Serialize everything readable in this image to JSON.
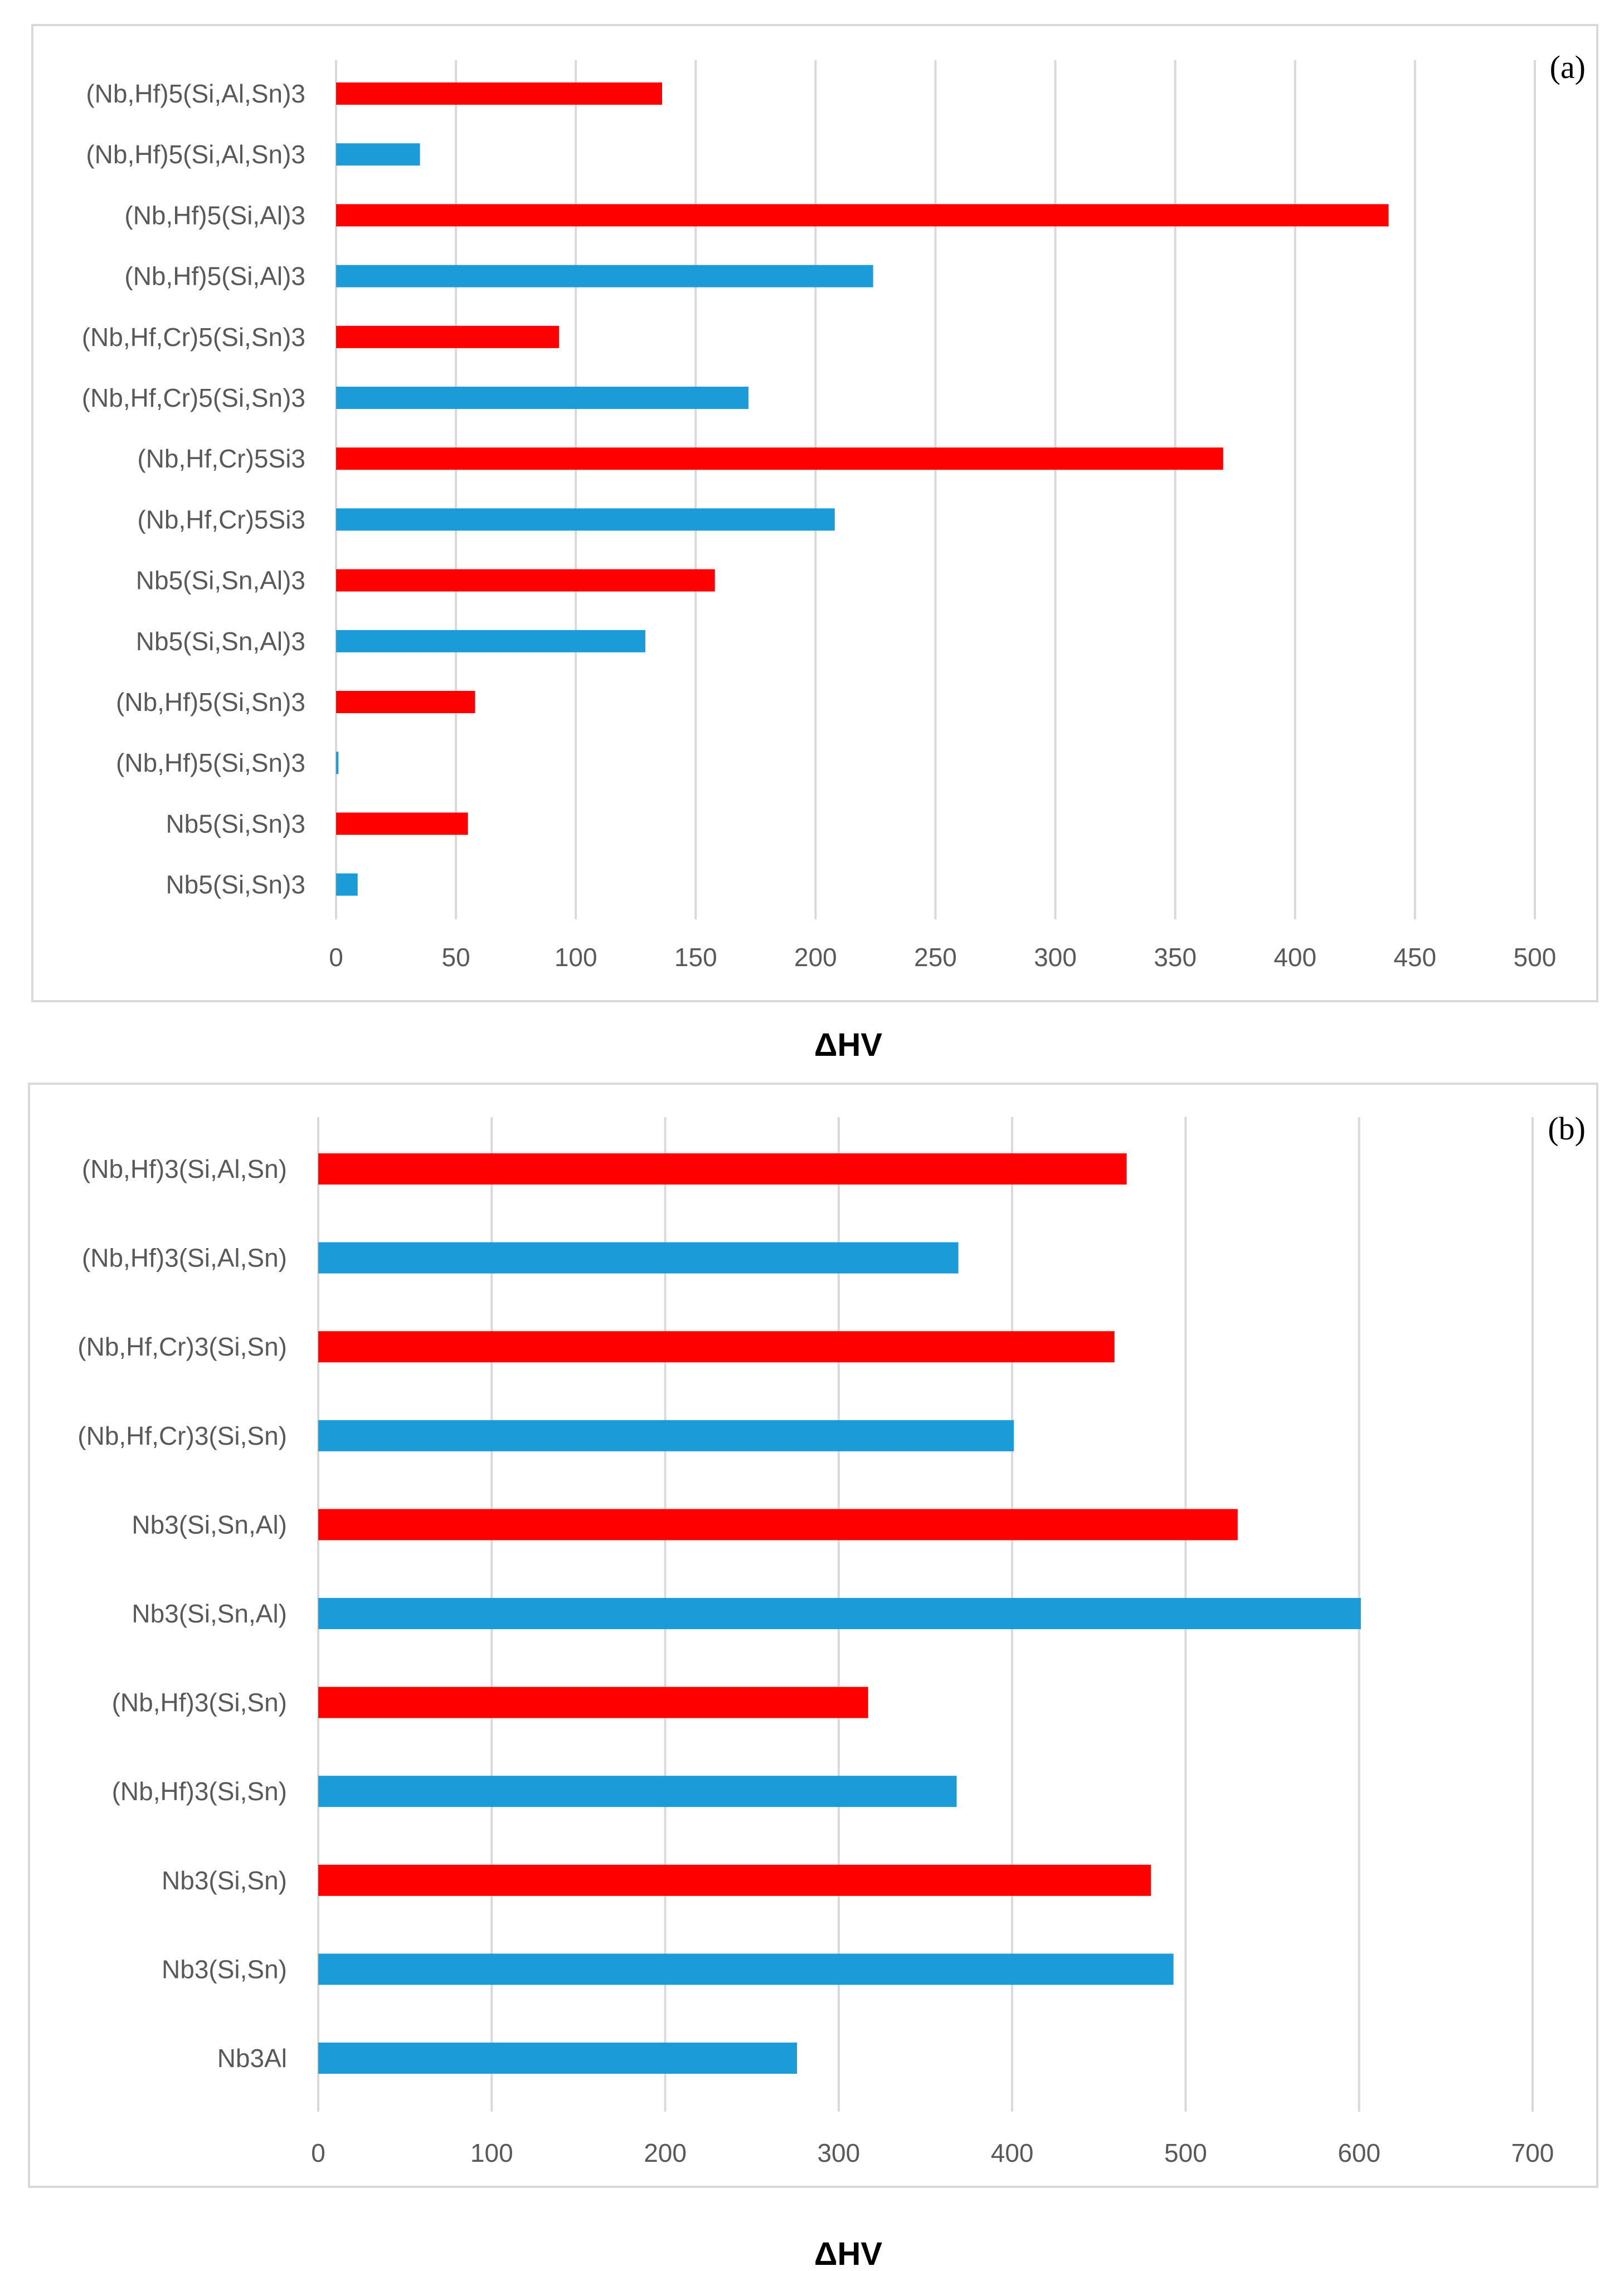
{
  "chart_data": [
    {
      "type": "bar",
      "orientation": "horizontal",
      "panel_label": "(a)",
      "xlabel": "ΔHV",
      "xlim": [
        0,
        500
      ],
      "xticks": [
        0,
        50,
        100,
        150,
        200,
        250,
        300,
        350,
        400,
        450,
        500
      ],
      "grid": true,
      "colors": {
        "red": "#ff0000",
        "blue": "#1b9cd9"
      },
      "bars": [
        {
          "category": "(Nb,Hf)5(Si,Al,Sn)3",
          "value": 136,
          "color": "red"
        },
        {
          "category": "(Nb,Hf)5(Si,Al,Sn)3",
          "value": 35,
          "color": "blue"
        },
        {
          "category": "(Nb,Hf)5(Si,Al)3",
          "value": 439,
          "color": "red"
        },
        {
          "category": "(Nb,Hf)5(Si,Al)3",
          "value": 224,
          "color": "blue"
        },
        {
          "category": "(Nb,Hf,Cr)5(Si,Sn)3",
          "value": 93,
          "color": "red"
        },
        {
          "category": "(Nb,Hf,Cr)5(Si,Sn)3",
          "value": 172,
          "color": "blue"
        },
        {
          "category": "(Nb,Hf,Cr)5Si3",
          "value": 370,
          "color": "red"
        },
        {
          "category": "(Nb,Hf,Cr)5Si3",
          "value": 208,
          "color": "blue"
        },
        {
          "category": "Nb5(Si,Sn,Al)3",
          "value": 158,
          "color": "red"
        },
        {
          "category": "Nb5(Si,Sn,Al)3",
          "value": 129,
          "color": "blue"
        },
        {
          "category": "(Nb,Hf)5(Si,Sn)3",
          "value": 58,
          "color": "red"
        },
        {
          "category": "(Nb,Hf)5(Si,Sn)3",
          "value": 1,
          "color": "blue"
        },
        {
          "category": "Nb5(Si,Sn)3",
          "value": 55,
          "color": "red"
        },
        {
          "category": "Nb5(Si,Sn)3",
          "value": 9,
          "color": "blue"
        }
      ]
    },
    {
      "type": "bar",
      "orientation": "horizontal",
      "panel_label": "(b)",
      "xlabel": "ΔHV",
      "xlim": [
        0,
        700
      ],
      "xticks": [
        0,
        100,
        200,
        300,
        400,
        500,
        600,
        700
      ],
      "grid": true,
      "colors": {
        "red": "#ff0000",
        "blue": "#1b9cd9"
      },
      "bars": [
        {
          "category": "(Nb,Hf)3(Si,Al,Sn)",
          "value": 466,
          "color": "red"
        },
        {
          "category": "(Nb,Hf)3(Si,Al,Sn)",
          "value": 369,
          "color": "blue"
        },
        {
          "category": "(Nb,Hf,Cr)3(Si,Sn)",
          "value": 459,
          "color": "red"
        },
        {
          "category": "(Nb,Hf,Cr)3(Si,Sn)",
          "value": 401,
          "color": "blue"
        },
        {
          "category": "Nb3(Si,Sn,Al)",
          "value": 530,
          "color": "red"
        },
        {
          "category": "Nb3(Si,Sn,Al)",
          "value": 601,
          "color": "blue"
        },
        {
          "category": "(Nb,Hf)3(Si,Sn)",
          "value": 317,
          "color": "red"
        },
        {
          "category": "(Nb,Hf)3(Si,Sn)",
          "value": 368,
          "color": "blue"
        },
        {
          "category": "Nb3(Si,Sn)",
          "value": 480,
          "color": "red"
        },
        {
          "category": "Nb3(Si,Sn)",
          "value": 493,
          "color": "blue"
        },
        {
          "category": "Nb3Al",
          "value": 276,
          "color": "blue"
        }
      ]
    }
  ]
}
